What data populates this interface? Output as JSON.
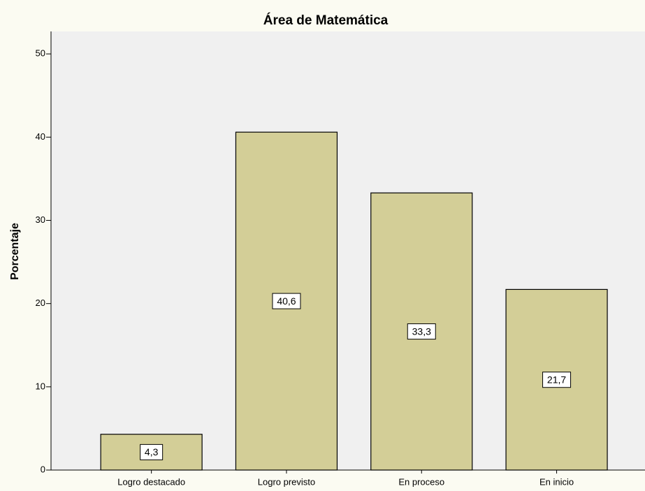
{
  "chart_data": {
    "type": "bar",
    "title": "Área de Matemática",
    "y_label": "Porcentaje",
    "categories": [
      "Logro destacado",
      "Logro previsto",
      "En proceso",
      "En inicio"
    ],
    "values": [
      4.3,
      40.6,
      33.3,
      21.7
    ],
    "value_labels": [
      "4,3",
      "40,6",
      "33,3",
      "21,7"
    ],
    "color": "#d3ce97",
    "ylim": [
      0,
      52.7
    ],
    "yticks": [
      0,
      10,
      20,
      30,
      40,
      50
    ],
    "grid": false
  }
}
